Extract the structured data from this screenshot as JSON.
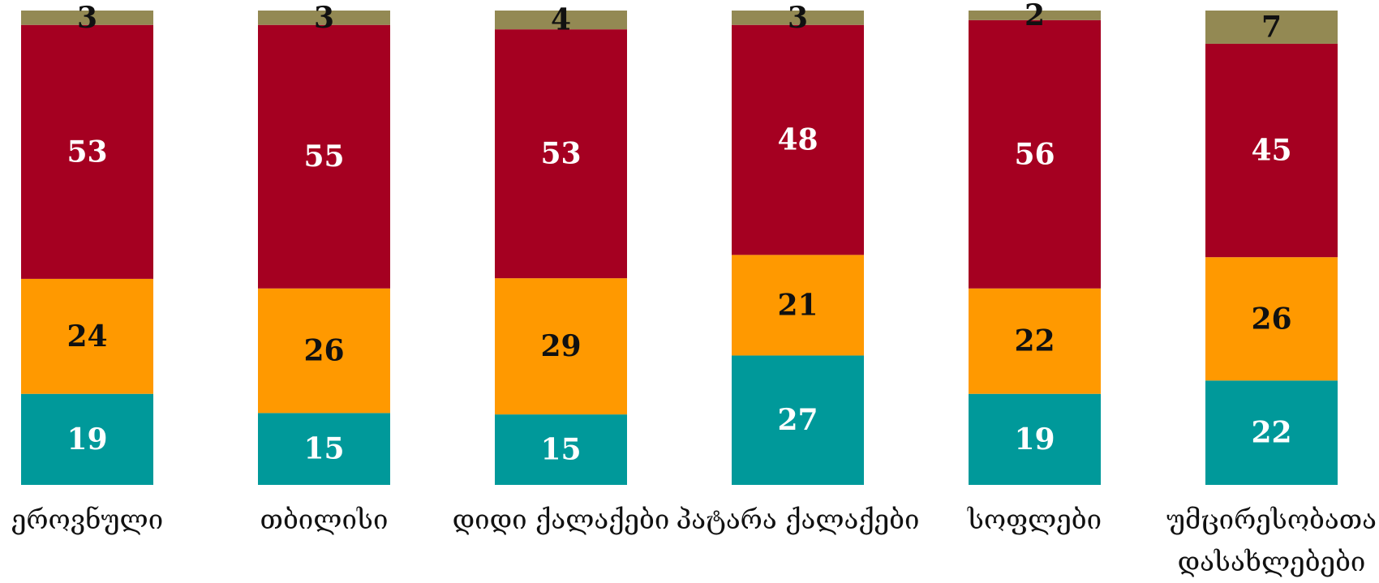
{
  "chart_data": {
    "type": "bar",
    "stacked": true,
    "normalized": true,
    "categories": [
      [
        "ეროვნული"
      ],
      [
        "თბილისი"
      ],
      [
        "დიდი ქალაქები"
      ],
      [
        "პატარა ქალაქები"
      ],
      [
        "სოფლები"
      ],
      [
        "უმცირესობათა",
        "დასახლებები"
      ]
    ],
    "series": [
      {
        "values": [
          19,
          15,
          15,
          27,
          19,
          22
        ],
        "color": "#00999a",
        "label_color": "#ffffff"
      },
      {
        "values": [
          24,
          26,
          29,
          21,
          22,
          26
        ],
        "color": "#ff9900",
        "label_color": "#111111"
      },
      {
        "values": [
          53,
          55,
          53,
          48,
          56,
          45
        ],
        "color": "#a50021",
        "label_color": "#ffffff"
      },
      {
        "values": [
          3,
          3,
          4,
          3,
          2,
          7
        ],
        "color": "#938953",
        "label_color": "#111111"
      }
    ],
    "ylim": [
      0,
      100
    ],
    "grid": false,
    "legend": "none"
  }
}
